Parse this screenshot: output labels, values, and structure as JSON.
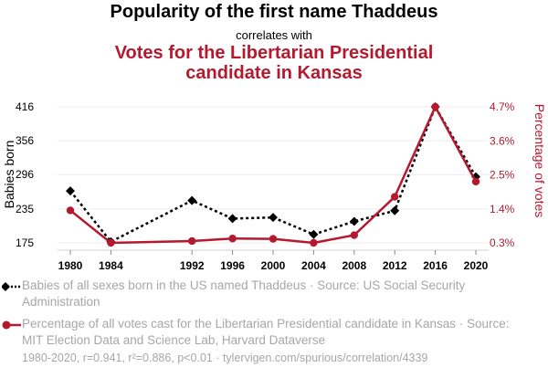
{
  "header": {
    "title": "Popularity of the first name Thaddeus",
    "subtitle": "correlates with",
    "title2": "Votes for the Libertarian Presidential candidate in Kansas"
  },
  "chart_data": {
    "type": "line",
    "x": [
      1980,
      1984,
      1992,
      1996,
      2000,
      2004,
      2008,
      2012,
      2016,
      2020
    ],
    "xlabel": "",
    "ylabel_left": "Babies born",
    "ylabel_right": "Percentage of votes",
    "left_axis": {
      "ticks": [
        175,
        235,
        296,
        356,
        416
      ],
      "range": [
        175,
        416
      ]
    },
    "right_axis": {
      "ticks": [
        0.3,
        1.4,
        2.5,
        3.6,
        4.7
      ],
      "tick_labels": [
        "0.3%",
        "1.4%",
        "2.5%",
        "3.6%",
        "4.7%"
      ],
      "range": [
        0.3,
        4.7
      ]
    },
    "grid": "horizontal",
    "series": [
      {
        "name": "Babies of all sexes born in the US named Thaddeus",
        "axis": "left",
        "color": "#000000",
        "style": "dotted",
        "marker": "diamond",
        "values": [
          267,
          177,
          250,
          218,
          220,
          190,
          213,
          232,
          416,
          292
        ]
      },
      {
        "name": "Percentage of all votes cast for the Libertarian Presidential candidate in Kansas",
        "axis": "right",
        "color": "#b5192e",
        "style": "solid",
        "marker": "circle",
        "values": [
          1.35,
          0.3,
          0.36,
          0.44,
          0.43,
          0.3,
          0.55,
          1.79,
          4.7,
          2.28
        ]
      }
    ]
  },
  "legend": [
    {
      "text": "Babies of all sexes born in the US named Thaddeus · Source: US Social Security Administration"
    },
    {
      "text": "Percentage of all votes cast for the Libertarian Presidential candidate in Kansas · Source: MIT Election Data and Science Lab, Harvard Dataverse"
    }
  ],
  "footer": "1980-2020, r=0.941, r²=0.886, p<0.01 · tylervigen.com/spurious/correlation/4339"
}
